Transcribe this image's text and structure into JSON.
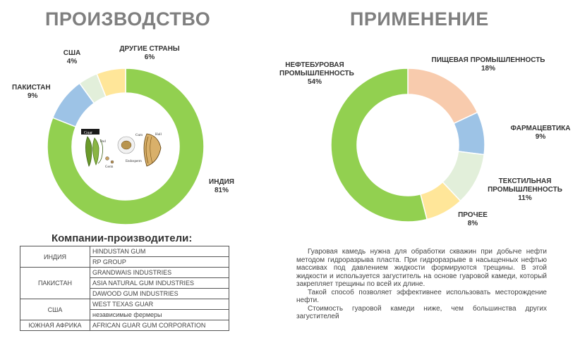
{
  "headings": {
    "production": "ПРОИЗВОДСТВО",
    "application": "ПРИМЕНЕНИЕ"
  },
  "chart_data": [
    {
      "type": "pie",
      "title": "ПРОИЗВОДСТВО",
      "slices": [
        {
          "label": "ИНДИЯ",
          "value": 81,
          "value_text": "81%",
          "color": "#92d050"
        },
        {
          "label": "ПАКИСТАН",
          "value": 9,
          "value_text": "9%",
          "color": "#9dc3e6"
        },
        {
          "label": "США",
          "value": 4,
          "value_text": "4%",
          "color": "#e2efda"
        },
        {
          "label": "ДРУГИЕ СТРАНЫ",
          "value": 6,
          "value_text": "6%",
          "color": "#ffe699"
        }
      ]
    },
    {
      "type": "pie",
      "title": "ПРИМЕНЕНИЕ",
      "slices": [
        {
          "label": "ПИЩЕВАЯ ПРОМЫШЛЕННОСТЬ",
          "value": 18,
          "value_text": "18%",
          "color": "#f8cbad"
        },
        {
          "label": "ФАРМАЦЕВТИКА",
          "value": 9,
          "value_text": "9%",
          "color": "#9dc3e6"
        },
        {
          "label": "ТЕКСТИЛЬНАЯ ПРОМЫШЛЕННОСТЬ",
          "value": 11,
          "value_text": "11%",
          "color": "#e2efda"
        },
        {
          "label": "ПРОЧЕЕ",
          "value": 8,
          "value_text": "8%",
          "color": "#ffe699"
        },
        {
          "label": "НЕФТЕБУРОВАЯ ПРОМЫШЛЕННОСТЬ",
          "value": 54,
          "value_text": "54%",
          "color": "#92d050"
        }
      ]
    }
  ],
  "labels": {
    "india": {
      "name": "ИНДИЯ",
      "pct": "81%"
    },
    "pakistan": {
      "name": "ПАКИСТАН",
      "pct": "9%"
    },
    "usa": {
      "name": "США",
      "pct": "4%"
    },
    "other": {
      "name": "ДРУГИЕ СТРАНЫ",
      "pct": "6%"
    },
    "oil": {
      "line1": "НЕФТЕБУРОВАЯ",
      "line2": "ПРОМЫШЛЕННОСТЬ",
      "pct": "54%"
    },
    "food": {
      "name": "ПИЩЕВАЯ ПРОМЫШЛЕННОСТЬ",
      "pct": "18%"
    },
    "pharma": {
      "name": "ФАРМАЦЕВТИКА",
      "pct": "9%"
    },
    "textile": {
      "line1": "ТЕКСТИЛЬНАЯ",
      "line2": "ПРОМЫШЛЕННОСТЬ",
      "pct": "11%"
    },
    "misc": {
      "name": "ПРОЧЕЕ",
      "pct": "8%"
    }
  },
  "illustration": {
    "guar_tag": "Guar",
    "pod": "Pod",
    "gum": "Gum",
    "hull": "Hull",
    "germ": "Germ",
    "endosperm": "Endosperm"
  },
  "companies": {
    "heading": "Компании-производители:",
    "rows": [
      {
        "country": "ИНДИЯ",
        "company": "HINDUSTAN GUM"
      },
      {
        "country": "",
        "company": "RP GROUP"
      },
      {
        "country": "",
        "company": "GRANDWAIS INDUSTRIES"
      },
      {
        "country": "ПАКИСТАН",
        "company": "ASIA NATURAL GUM INDUSTRIES"
      },
      {
        "country": "",
        "company": "DAWOOD GUM INDUSTRIES"
      },
      {
        "country": "США",
        "company": "WEST TEXAS GUAR"
      },
      {
        "country": "",
        "company": "независимые фермеры"
      },
      {
        "country": "ЮЖНАЯ АФРИКА",
        "company": "AFRICAN GUAR GUM CORPORATION"
      }
    ]
  },
  "description": {
    "p1": "Гуаровая камедь нужна для обработки скважин при добыче нефти методом гидроразрыва пласта. При гидроразрыве в насыщенных нефтью массивах под давлением жидкости формируются трещины. В этой жидкости и используется загуститель на основе гуаровой камеди, который закрепляет трещины по всей их длине.",
    "p2": "Такой способ позволяет эффективнее использовать месторождение нефти.",
    "p3": "Стоимость гуаровой камеди ниже, чем большинства других загустителей"
  }
}
